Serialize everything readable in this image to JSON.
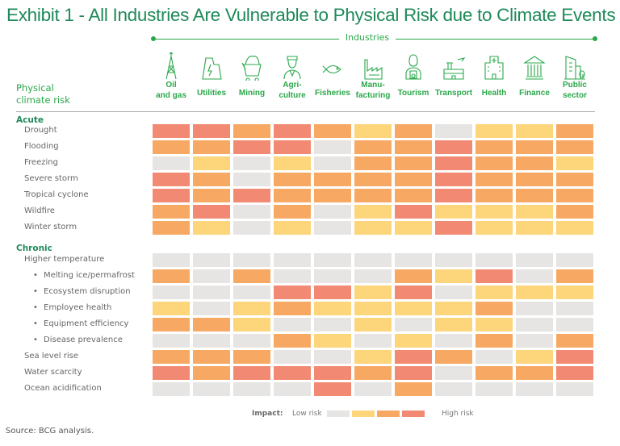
{
  "title": "Exhibit 1 - All Industries Are Vulnerable to Physical Risk due to Climate Events",
  "industries_label": "Industries",
  "row_header": [
    "Physical",
    "climate risk"
  ],
  "colors": {
    "0": "#e6e5e3",
    "1": "#fdd57b",
    "2": "#f7a963",
    "3": "#f28a73",
    "accent": "#2aa84a",
    "title": "#1f8a5a"
  },
  "columns": [
    {
      "label": [
        "Oil",
        "and gas"
      ],
      "icon": "oil-rig-icon"
    },
    {
      "label": [
        "Utilities"
      ],
      "icon": "power-plant-icon"
    },
    {
      "label": [
        "Mining"
      ],
      "icon": "mine-cart-icon"
    },
    {
      "label": [
        "Agri-",
        "culture"
      ],
      "icon": "farmer-icon"
    },
    {
      "label": [
        "Fisheries"
      ],
      "icon": "fish-icon"
    },
    {
      "label": [
        "Manu-",
        "facturing"
      ],
      "icon": "factory-icon"
    },
    {
      "label": [
        "Tourism"
      ],
      "icon": "tourist-camera-icon"
    },
    {
      "label": [
        "Transport"
      ],
      "icon": "airport-icon"
    },
    {
      "label": [
        "Health"
      ],
      "icon": "hospital-icon"
    },
    {
      "label": [
        "Finance"
      ],
      "icon": "bank-icon"
    },
    {
      "label": [
        "Public",
        "sector"
      ],
      "icon": "public-building-icon"
    }
  ],
  "chart_data": {
    "type": "heatmap",
    "title": "Exhibit 1 - All Industries Are Vulnerable to Physical Risk due to Climate Events",
    "scale": {
      "0": "Low risk",
      "3": "High risk"
    },
    "groups": [
      {
        "name": "Acute",
        "rows": [
          {
            "label": "Drought",
            "bullet": false,
            "values": [
              3,
              3,
              2,
              3,
              2,
              1,
              2,
              0,
              1,
              1,
              2
            ]
          },
          {
            "label": "Flooding",
            "bullet": false,
            "values": [
              2,
              2,
              3,
              3,
              0,
              2,
              2,
              3,
              2,
              2,
              2
            ]
          },
          {
            "label": "Freezing",
            "bullet": false,
            "values": [
              0,
              1,
              0,
              1,
              0,
              2,
              2,
              3,
              2,
              2,
              1
            ]
          },
          {
            "label": "Severe storm",
            "bullet": false,
            "values": [
              3,
              2,
              0,
              2,
              2,
              2,
              2,
              3,
              2,
              2,
              2
            ]
          },
          {
            "label": "Tropical cyclone",
            "bullet": false,
            "values": [
              3,
              2,
              3,
              2,
              2,
              2,
              2,
              3,
              2,
              2,
              2
            ]
          },
          {
            "label": "Wildfire",
            "bullet": false,
            "values": [
              2,
              3,
              0,
              2,
              0,
              1,
              3,
              1,
              1,
              1,
              2
            ]
          },
          {
            "label": "Winter storm",
            "bullet": false,
            "values": [
              2,
              1,
              0,
              1,
              0,
              1,
              1,
              3,
              1,
              1,
              1
            ]
          }
        ]
      },
      {
        "name": "Chronic",
        "rows": [
          {
            "label": "Higher temperature",
            "bullet": false,
            "values": [
              0,
              0,
              0,
              0,
              0,
              0,
              0,
              0,
              0,
              0,
              0
            ]
          },
          {
            "label": "Melting ice/permafrost",
            "bullet": true,
            "values": [
              2,
              0,
              2,
              0,
              0,
              0,
              2,
              1,
              3,
              0,
              2
            ]
          },
          {
            "label": "Ecosystem disruption",
            "bullet": true,
            "values": [
              0,
              0,
              0,
              3,
              3,
              1,
              3,
              0,
              1,
              1,
              1
            ]
          },
          {
            "label": "Employee health",
            "bullet": true,
            "values": [
              1,
              0,
              1,
              2,
              1,
              1,
              1,
              1,
              2,
              0,
              0
            ]
          },
          {
            "label": "Equipment efficiency",
            "bullet": true,
            "values": [
              2,
              2,
              1,
              0,
              0,
              1,
              0,
              1,
              1,
              0,
              0
            ]
          },
          {
            "label": "Disease prevalence",
            "bullet": true,
            "values": [
              0,
              0,
              0,
              2,
              1,
              0,
              1,
              0,
              2,
              0,
              2
            ]
          },
          {
            "label": "Sea level rise",
            "bullet": false,
            "values": [
              2,
              2,
              2,
              0,
              0,
              1,
              3,
              2,
              0,
              1,
              3
            ]
          },
          {
            "label": "Water scarcity",
            "bullet": false,
            "values": [
              3,
              2,
              3,
              3,
              3,
              2,
              3,
              0,
              2,
              2,
              3
            ]
          },
          {
            "label": "Ocean acidification",
            "bullet": false,
            "values": [
              0,
              0,
              0,
              0,
              3,
              0,
              2,
              0,
              0,
              0,
              0
            ]
          }
        ]
      }
    ]
  },
  "legend": {
    "title": "Impact:",
    "low": "Low risk",
    "high": "High risk"
  },
  "source": "Source: BCG analysis."
}
